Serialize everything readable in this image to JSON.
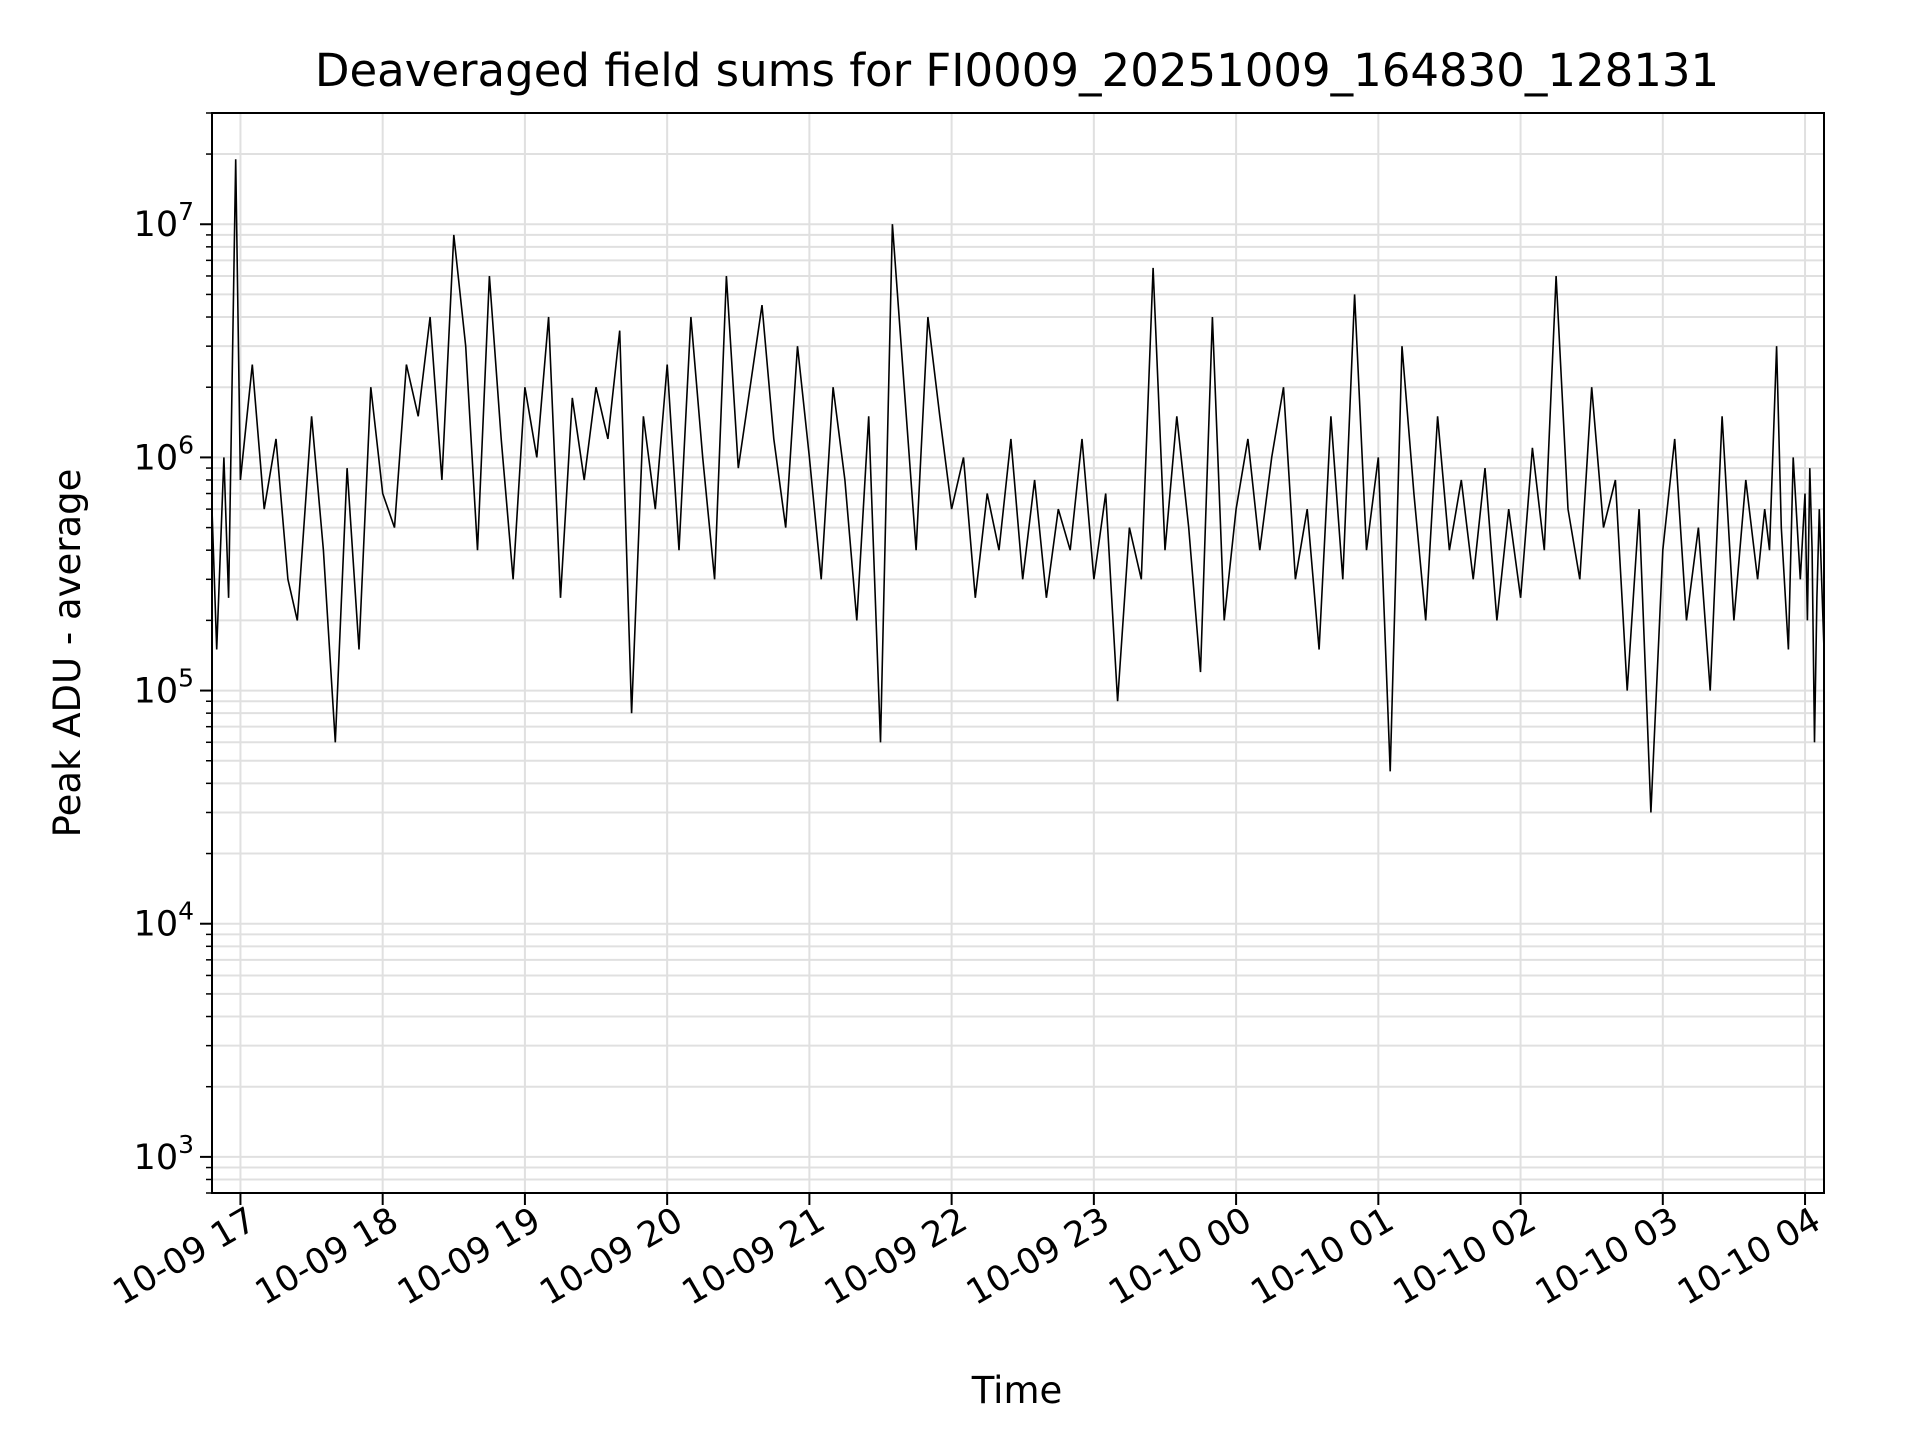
{
  "chart_data": {
    "type": "line",
    "title": "Deaveraged field sums for FI0009_20251009_164830_128131",
    "xlabel": "Time",
    "ylabel": "Peak ADU - average",
    "yscale": "log",
    "ylim": [
      700,
      30000000
    ],
    "xlim": [
      "2025-10-09 16:48",
      "2025-10-10 04:08"
    ],
    "grid": true,
    "line_color": "#000000",
    "grid_color": "#e0e0e0",
    "x_ticks": [
      {
        "t": "2025-10-09 17:00",
        "label": "10-09 17"
      },
      {
        "t": "2025-10-09 18:00",
        "label": "10-09 18"
      },
      {
        "t": "2025-10-09 19:00",
        "label": "10-09 19"
      },
      {
        "t": "2025-10-09 20:00",
        "label": "10-09 20"
      },
      {
        "t": "2025-10-09 21:00",
        "label": "10-09 21"
      },
      {
        "t": "2025-10-09 22:00",
        "label": "10-09 22"
      },
      {
        "t": "2025-10-09 23:00",
        "label": "10-09 23"
      },
      {
        "t": "2025-10-10 00:00",
        "label": "10-10 00"
      },
      {
        "t": "2025-10-10 01:00",
        "label": "10-10 01"
      },
      {
        "t": "2025-10-10 02:00",
        "label": "10-10 02"
      },
      {
        "t": "2025-10-10 03:00",
        "label": "10-10 03"
      },
      {
        "t": "2025-10-10 04:00",
        "label": "10-10 04"
      }
    ],
    "y_ticks": [
      {
        "value": 1000,
        "base": "10",
        "exp": "3"
      },
      {
        "value": 10000,
        "base": "10",
        "exp": "4"
      },
      {
        "value": 100000,
        "base": "10",
        "exp": "5"
      },
      {
        "value": 1000000,
        "base": "10",
        "exp": "6"
      },
      {
        "value": 10000000,
        "base": "10",
        "exp": "7"
      }
    ],
    "series": [
      {
        "x": [
          "2025-10-09 16:48",
          "2025-10-09 16:50",
          "2025-10-09 16:53",
          "2025-10-09 16:55",
          "2025-10-09 16:58",
          "2025-10-09 17:00",
          "2025-10-09 17:05",
          "2025-10-09 17:10",
          "2025-10-09 17:15",
          "2025-10-09 17:20",
          "2025-10-09 17:24",
          "2025-10-09 17:30",
          "2025-10-09 17:35",
          "2025-10-09 17:40",
          "2025-10-09 17:45",
          "2025-10-09 17:50",
          "2025-10-09 17:55",
          "2025-10-09 18:00",
          "2025-10-09 18:05",
          "2025-10-09 18:10",
          "2025-10-09 18:15",
          "2025-10-09 18:20",
          "2025-10-09 18:25",
          "2025-10-09 18:30",
          "2025-10-09 18:35",
          "2025-10-09 18:40",
          "2025-10-09 18:45",
          "2025-10-09 18:50",
          "2025-10-09 18:55",
          "2025-10-09 19:00",
          "2025-10-09 19:05",
          "2025-10-09 19:10",
          "2025-10-09 19:15",
          "2025-10-09 19:20",
          "2025-10-09 19:25",
          "2025-10-09 19:30",
          "2025-10-09 19:35",
          "2025-10-09 19:40",
          "2025-10-09 19:45",
          "2025-10-09 19:50",
          "2025-10-09 19:55",
          "2025-10-09 20:00",
          "2025-10-09 20:05",
          "2025-10-09 20:10",
          "2025-10-09 20:15",
          "2025-10-09 20:20",
          "2025-10-09 20:25",
          "2025-10-09 20:30",
          "2025-10-09 20:35",
          "2025-10-09 20:40",
          "2025-10-09 20:45",
          "2025-10-09 20:50",
          "2025-10-09 20:55",
          "2025-10-09 21:00",
          "2025-10-09 21:05",
          "2025-10-09 21:10",
          "2025-10-09 21:15",
          "2025-10-09 21:20",
          "2025-10-09 21:25",
          "2025-10-09 21:30",
          "2025-10-09 21:35",
          "2025-10-09 21:40",
          "2025-10-09 21:45",
          "2025-10-09 21:50",
          "2025-10-09 21:55",
          "2025-10-09 22:00",
          "2025-10-09 22:05",
          "2025-10-09 22:10",
          "2025-10-09 22:15",
          "2025-10-09 22:20",
          "2025-10-09 22:25",
          "2025-10-09 22:30",
          "2025-10-09 22:35",
          "2025-10-09 22:40",
          "2025-10-09 22:45",
          "2025-10-09 22:50",
          "2025-10-09 22:55",
          "2025-10-09 23:00",
          "2025-10-09 23:05",
          "2025-10-09 23:10",
          "2025-10-09 23:15",
          "2025-10-09 23:20",
          "2025-10-09 23:25",
          "2025-10-09 23:30",
          "2025-10-09 23:35",
          "2025-10-09 23:40",
          "2025-10-09 23:45",
          "2025-10-09 23:50",
          "2025-10-09 23:55",
          "2025-10-10 00:00",
          "2025-10-10 00:05",
          "2025-10-10 00:10",
          "2025-10-10 00:15",
          "2025-10-10 00:20",
          "2025-10-10 00:25",
          "2025-10-10 00:30",
          "2025-10-10 00:35",
          "2025-10-10 00:40",
          "2025-10-10 00:45",
          "2025-10-10 00:50",
          "2025-10-10 00:55",
          "2025-10-10 01:00",
          "2025-10-10 01:05",
          "2025-10-10 01:10",
          "2025-10-10 01:15",
          "2025-10-10 01:20",
          "2025-10-10 01:25",
          "2025-10-10 01:30",
          "2025-10-10 01:35",
          "2025-10-10 01:40",
          "2025-10-10 01:45",
          "2025-10-10 01:50",
          "2025-10-10 01:55",
          "2025-10-10 02:00",
          "2025-10-10 02:05",
          "2025-10-10 02:10",
          "2025-10-10 02:15",
          "2025-10-10 02:20",
          "2025-10-10 02:25",
          "2025-10-10 02:30",
          "2025-10-10 02:35",
          "2025-10-10 02:40",
          "2025-10-10 02:45",
          "2025-10-10 02:50",
          "2025-10-10 02:55",
          "2025-10-10 03:00",
          "2025-10-10 03:05",
          "2025-10-10 03:10",
          "2025-10-10 03:15",
          "2025-10-10 03:20",
          "2025-10-10 03:25",
          "2025-10-10 03:30",
          "2025-10-10 03:35",
          "2025-10-10 03:40",
          "2025-10-10 03:43",
          "2025-10-10 03:45",
          "2025-10-10 03:48",
          "2025-10-10 03:50",
          "2025-10-10 03:53",
          "2025-10-10 03:55",
          "2025-10-10 03:58",
          "2025-10-10 04:00",
          "2025-10-10 04:01",
          "2025-10-10 04:02",
          "2025-10-10 04:03",
          "2025-10-10 04:04",
          "2025-10-10 04:05",
          "2025-10-10 04:06",
          "2025-10-10 04:07",
          "2025-10-10 04:08"
        ],
        "y": [
          600000,
          150000,
          1000000,
          250000,
          19000000,
          800000,
          2500000,
          600000,
          1200000,
          300000,
          200000,
          1500000,
          400000,
          60000,
          900000,
          150000,
          2000000,
          700000,
          500000,
          2500000,
          1500000,
          4000000,
          800000,
          9000000,
          3000000,
          400000,
          6000000,
          1200000,
          300000,
          2000000,
          1000000,
          4000000,
          250000,
          1800000,
          800000,
          2000000,
          1200000,
          3500000,
          80000,
          1500000,
          600000,
          2500000,
          400000,
          4000000,
          1000000,
          300000,
          6000000,
          900000,
          2000000,
          4500000,
          1200000,
          500000,
          3000000,
          1000000,
          300000,
          2000000,
          800000,
          200000,
          1500000,
          60000,
          10000000,
          2000000,
          400000,
          4000000,
          1500000,
          600000,
          1000000,
          250000,
          700000,
          400000,
          1200000,
          300000,
          800000,
          250000,
          600000,
          400000,
          1200000,
          300000,
          700000,
          90000,
          500000,
          300000,
          6500000,
          400000,
          1500000,
          500000,
          120000,
          4000000,
          200000,
          600000,
          1200000,
          400000,
          1000000,
          2000000,
          300000,
          600000,
          150000,
          1500000,
          300000,
          5000000,
          400000,
          1000000,
          45000,
          3000000,
          700000,
          200000,
          1500000,
          400000,
          800000,
          300000,
          900000,
          200000,
          600000,
          250000,
          1100000,
          400000,
          6000000,
          600000,
          300000,
          2000000,
          500000,
          800000,
          100000,
          600000,
          30000,
          400000,
          1200000,
          200000,
          500000,
          100000,
          1500000,
          200000,
          800000,
          300000,
          600000,
          400000,
          3000000,
          500000,
          150000,
          1000000,
          300000,
          700000,
          200000,
          900000,
          400000,
          60000,
          250000,
          600000,
          300000,
          150000
        ]
      }
    ]
  }
}
